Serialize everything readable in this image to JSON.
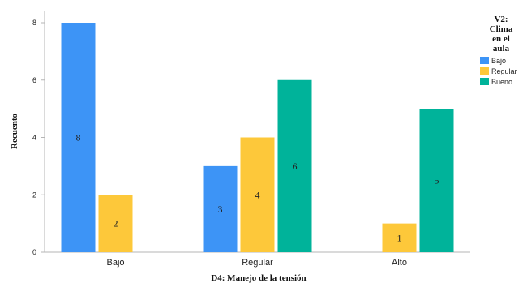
{
  "chart_data": {
    "type": "bar",
    "categories": [
      "Bajo",
      "Regular",
      "Alto"
    ],
    "series": [
      {
        "name": "Bajo",
        "values": [
          8,
          3,
          0
        ],
        "color": "#3d94f6"
      },
      {
        "name": "Regular",
        "values": [
          2,
          4,
          1
        ],
        "color": "#fdc83a"
      },
      {
        "name": "Bueno",
        "values": [
          0,
          6,
          5
        ],
        "color": "#00b39a"
      }
    ],
    "xlabel": "D4: Manejo de la tensión",
    "ylabel": "Recuento",
    "ylim": [
      0,
      8
    ],
    "yticks": [
      0,
      2,
      4,
      6,
      8
    ],
    "legend": {
      "title_lines": [
        "V2:",
        "Clima",
        "en el",
        "aula"
      ],
      "position": "right"
    },
    "grid": false
  }
}
